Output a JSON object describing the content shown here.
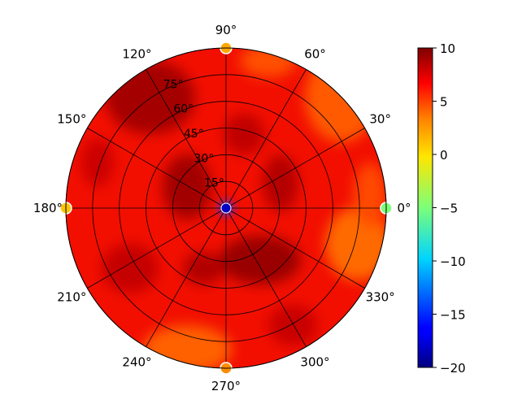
{
  "chart_data": {
    "type": "heatmap",
    "subtype": "polar-heatmap",
    "title": "",
    "angle_ticks": [
      "0°",
      "30°",
      "60°",
      "90°",
      "120°",
      "150°",
      "180°",
      "210°",
      "240°",
      "270°",
      "300°",
      "330°"
    ],
    "angle_tick_values": [
      0,
      30,
      60,
      90,
      120,
      150,
      180,
      210,
      240,
      270,
      300,
      330
    ],
    "radial_ticks": [
      "15°",
      "30°",
      "45°",
      "60°",
      "75°"
    ],
    "radial_tick_values": [
      15,
      30,
      45,
      60,
      75
    ],
    "radial_range": [
      0,
      90
    ],
    "grid": true,
    "colormap": "jet",
    "colorbar": {
      "range": [
        -20,
        10
      ],
      "ticks": [
        "10",
        "5",
        "0",
        "−5",
        "−10",
        "−15",
        "−20"
      ],
      "tick_values": [
        10,
        5,
        0,
        -5,
        -10,
        -15,
        -20
      ]
    },
    "field_description": "Mostly 5-8 across the disk, darker (about 8-9) in a ring near radius 30-60 and in the upper-left region; lighter orange (about 4) near the right and lower edges; about -18 at the center.",
    "sample_points": [
      {
        "theta": 0,
        "r": 0,
        "value": -18
      },
      {
        "theta": 0,
        "r": 90,
        "value": -5
      },
      {
        "theta": 90,
        "r": 90,
        "value": 2
      },
      {
        "theta": 180,
        "r": 90,
        "value": 1
      },
      {
        "theta": 270,
        "r": 90,
        "value": 3
      },
      {
        "theta": 315,
        "r": 45,
        "value": 9
      },
      {
        "theta": 130,
        "r": 60,
        "value": 9
      },
      {
        "theta": 20,
        "r": 80,
        "value": 4
      },
      {
        "theta": 340,
        "r": 85,
        "value": 4
      },
      {
        "theta": 250,
        "r": 88,
        "value": 4
      }
    ]
  }
}
